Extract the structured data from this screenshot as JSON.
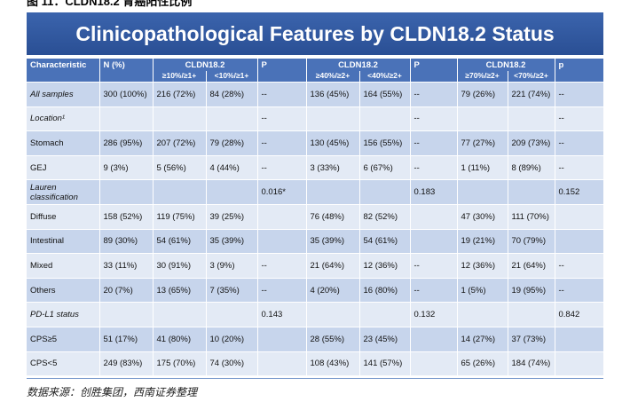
{
  "header": {
    "caption": "图 11：CLDN18.2 胃癌阳性比例",
    "title": "Clinicopathological Features by CLDN18.2 Status"
  },
  "table": {
    "head": {
      "characteristic": "Characteristic",
      "n": "N (%)",
      "groups": [
        {
          "name": "CLDN18.2",
          "sub": [
            "≥10%/≥1+",
            "<10%/≥1+"
          ],
          "p": "P"
        },
        {
          "name": "CLDN18.2",
          "sub": [
            "≥40%/≥2+",
            "<40%/≥2+"
          ],
          "p": "P"
        },
        {
          "name": "CLDN18.2",
          "sub": [
            "≥70%/≥2+",
            "<70%/≥2+"
          ],
          "p": "p"
        }
      ]
    },
    "rows": [
      {
        "label": "All samples",
        "italic": true,
        "cells": [
          "300 (100%)",
          "216 (72%)",
          "84 (28%)",
          "--",
          "136 (45%)",
          "164 (55%)",
          "--",
          "79 (26%)",
          "221 (74%)",
          "--"
        ]
      },
      {
        "label": "Location¹",
        "italic": true,
        "cells": [
          null,
          null,
          null,
          "--",
          null,
          null,
          "--",
          null,
          null,
          "--"
        ]
      },
      {
        "label": "Stomach",
        "cells": [
          "286 (95%)",
          "207 (72%)",
          "79 (28%)",
          "--",
          "130 (45%)",
          "156 (55%)",
          "--",
          "77 (27%)",
          "209 (73%)",
          "--"
        ]
      },
      {
        "label": "GEJ",
        "cells": [
          "9 (3%)",
          "5 (56%)",
          "4 (44%)",
          "--",
          "3 (33%)",
          "6 (67%)",
          "--",
          "1 (11%)",
          "8 (89%)",
          "--"
        ]
      },
      {
        "label": "Lauren classification",
        "italic": true,
        "cells": [
          null,
          null,
          null,
          "0.016*",
          null,
          null,
          "0.183",
          null,
          null,
          "0.152"
        ]
      },
      {
        "label": "Diffuse",
        "cells": [
          "158 (52%)",
          "119 (75%)",
          "39 (25%)",
          null,
          "76 (48%)",
          "82 (52%)",
          null,
          "47 (30%)",
          "111 (70%)",
          null
        ]
      },
      {
        "label": "Intestinal",
        "cells": [
          "89 (30%)",
          "54 (61%)",
          "35 (39%)",
          null,
          "35 (39%)",
          "54 (61%)",
          null,
          "19 (21%)",
          "70 (79%)",
          null
        ]
      },
      {
        "label": "Mixed",
        "cells": [
          "33 (11%)",
          "30 (91%)",
          "3 (9%)",
          "--",
          "21 (64%)",
          "12 (36%)",
          "--",
          "12 (36%)",
          "21 (64%)",
          "--"
        ]
      },
      {
        "label": "Others",
        "cells": [
          "20 (7%)",
          "13 (65%)",
          "7 (35%)",
          "--",
          "4 (20%)",
          "16 (80%)",
          "--",
          "1 (5%)",
          "19 (95%)",
          "--"
        ]
      },
      {
        "label": "PD-L1 status",
        "italic": true,
        "cells": [
          null,
          null,
          null,
          "0.143",
          null,
          null,
          "0.132",
          null,
          null,
          "0.842"
        ]
      },
      {
        "label": "CPS≥5",
        "cells": [
          "51 (17%)",
          "41 (80%)",
          "10 (20%)",
          null,
          "28 (55%)",
          "23 (45%)",
          null,
          "14 (27%)",
          "37 (73%)",
          null
        ]
      },
      {
        "label": "CPS<5",
        "cells": [
          "249 (83%)",
          "175 (70%)",
          "74 (30%)",
          null,
          "108 (43%)",
          "141 (57%)",
          null,
          "65 (26%)",
          "184 (74%)",
          null
        ]
      }
    ]
  },
  "footer": {
    "source": "数据来源：创胜集团，西南证券整理"
  }
}
